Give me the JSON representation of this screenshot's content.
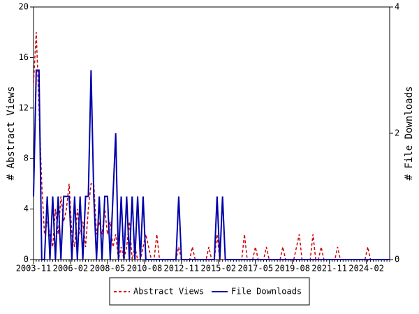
{
  "chart_data": {
    "type": "line",
    "x": [
      "2003-11",
      "2004-01",
      "2004-03",
      "2004-05",
      "2004-07",
      "2004-09",
      "2004-11",
      "2005-01",
      "2005-03",
      "2005-05",
      "2005-07",
      "2005-09",
      "2005-11",
      "2006-01",
      "2006-03",
      "2006-05",
      "2006-07",
      "2006-09",
      "2006-11",
      "2007-01",
      "2007-03",
      "2007-05",
      "2007-07",
      "2007-09",
      "2007-11",
      "2008-01",
      "2008-03",
      "2008-05",
      "2008-07",
      "2008-09",
      "2008-11",
      "2009-01",
      "2009-03",
      "2009-05",
      "2009-07",
      "2009-09",
      "2009-11",
      "2010-01",
      "2010-03",
      "2010-05",
      "2010-07",
      "2010-09",
      "2010-11",
      "2011-01",
      "2011-03",
      "2011-05",
      "2011-07",
      "2011-09",
      "2011-11",
      "2012-01",
      "2012-03",
      "2012-05",
      "2012-07",
      "2012-09",
      "2012-11",
      "2013-01",
      "2013-03",
      "2013-05",
      "2013-07",
      "2013-09",
      "2013-11",
      "2014-01",
      "2014-03",
      "2014-05",
      "2014-07",
      "2014-09",
      "2014-11",
      "2015-01",
      "2015-03",
      "2015-05",
      "2015-07",
      "2015-09",
      "2015-11",
      "2016-01",
      "2016-03",
      "2016-05",
      "2016-07",
      "2016-09",
      "2016-11",
      "2017-01",
      "2017-03",
      "2017-05",
      "2017-07",
      "2017-09",
      "2017-11",
      "2018-01",
      "2018-03",
      "2018-05",
      "2018-07",
      "2018-09",
      "2018-11",
      "2019-01",
      "2019-03",
      "2019-05",
      "2019-07",
      "2019-09",
      "2019-11",
      "2020-01",
      "2020-03",
      "2020-05",
      "2020-07",
      "2020-09",
      "2020-11",
      "2021-01",
      "2021-03",
      "2021-05",
      "2021-07",
      "2021-09",
      "2021-11",
      "2022-01",
      "2022-03",
      "2022-05",
      "2022-07",
      "2022-09",
      "2022-11",
      "2023-01",
      "2023-03",
      "2023-05",
      "2023-07",
      "2023-09",
      "2023-11",
      "2024-01",
      "2024-03",
      "2024-05",
      "2024-07",
      "2024-09",
      "2024-11",
      "2025-01",
      "2025-03",
      "2025-05",
      "2025-07"
    ],
    "xlim": [
      "2003-11",
      "2025-07"
    ],
    "xticks": [
      "2003-11",
      "2006-02",
      "2008-05",
      "2010-08",
      "2012-11",
      "2015-02",
      "2017-05",
      "2019-08",
      "2021-11",
      "2024-02"
    ],
    "ylabel": "# Abstract Views",
    "ylim": [
      0,
      20
    ],
    "yticks": [
      0,
      4,
      8,
      12,
      16,
      20
    ],
    "y2label": "# File Downloads",
    "y2lim": [
      0,
      4
    ],
    "y2ticks": [
      0,
      2,
      4
    ],
    "legend": "bottom",
    "series": [
      {
        "name": "Abstract Views",
        "color": "#cc0000",
        "dash": true,
        "values": [
          14,
          18,
          12,
          6,
          2,
          3,
          2,
          1,
          4,
          2,
          5,
          3,
          4,
          6,
          2,
          1,
          4,
          2,
          3,
          1,
          4,
          6,
          6,
          2,
          3,
          2,
          4,
          2,
          3,
          1,
          2,
          0,
          1,
          0,
          1,
          3,
          0,
          1,
          0,
          0,
          1,
          2,
          1,
          0,
          0,
          2,
          0,
          0,
          0,
          0,
          0,
          0,
          0,
          1,
          0,
          0,
          0,
          0,
          1,
          0,
          0,
          0,
          0,
          0,
          1,
          0,
          0,
          2,
          0,
          0,
          0,
          0,
          0,
          0,
          0,
          0,
          0,
          2,
          0,
          0,
          0,
          1,
          0,
          0,
          0,
          1,
          0,
          0,
          0,
          0,
          0,
          1,
          0,
          0,
          0,
          0,
          1,
          2,
          0,
          0,
          0,
          0,
          2,
          0,
          0,
          1,
          0,
          0,
          0,
          0,
          0,
          1,
          0,
          0,
          0,
          0,
          0,
          0,
          0,
          0,
          0,
          0,
          1,
          0,
          0,
          0,
          0,
          0,
          0,
          0,
          0
        ]
      },
      {
        "name": "File Downloads",
        "color": "#0000aa",
        "axis": "y2",
        "values": [
          1,
          3,
          3,
          0,
          0,
          1,
          0,
          1,
          0,
          1,
          0,
          1,
          1,
          1,
          0,
          1,
          0,
          1,
          0,
          1,
          1,
          3,
          1,
          0,
          1,
          0,
          1,
          1,
          0,
          1,
          2,
          0,
          1,
          0,
          1,
          0,
          1,
          0,
          1,
          0,
          1,
          0,
          0,
          0,
          0,
          0,
          0,
          0,
          0,
          0,
          0,
          0,
          0,
          1,
          0,
          0,
          0,
          0,
          0,
          0,
          0,
          0,
          0,
          0,
          0,
          0,
          0,
          1,
          0,
          1,
          0,
          0,
          0,
          0,
          0,
          0,
          0,
          0,
          0,
          0,
          0,
          0,
          0,
          0,
          0,
          0,
          0,
          0,
          0,
          0,
          0,
          0,
          0,
          0,
          0,
          0,
          0,
          0,
          0,
          0,
          0,
          0,
          0,
          0,
          0,
          0,
          0,
          0,
          0,
          0,
          0,
          0,
          0,
          0,
          0,
          0,
          0,
          0,
          0,
          0,
          0,
          0,
          0,
          0,
          0,
          0,
          0,
          0,
          0,
          0,
          0
        ]
      }
    ]
  }
}
